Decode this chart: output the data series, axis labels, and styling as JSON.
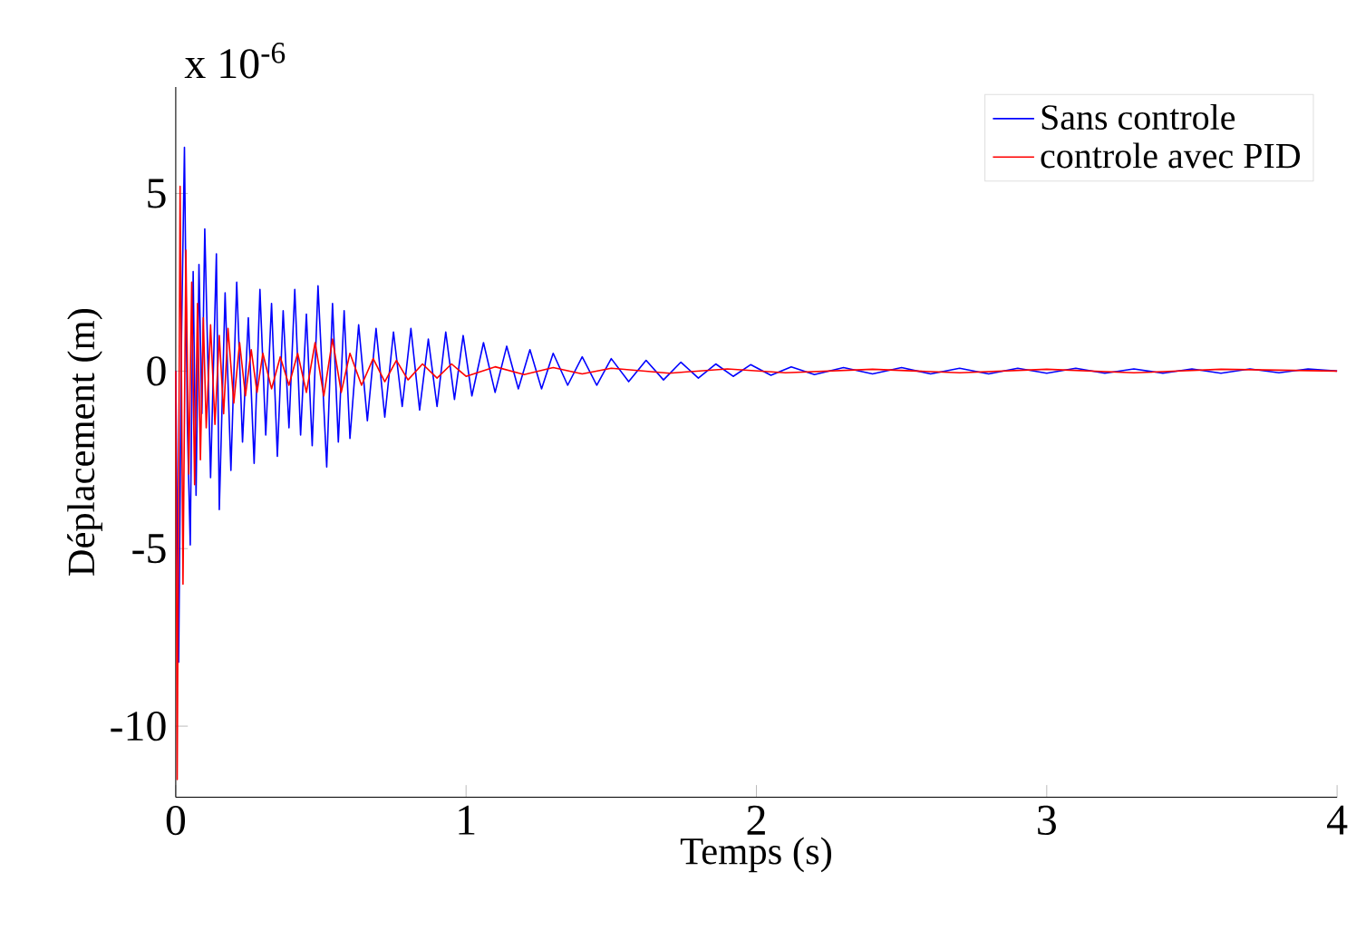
{
  "chart_data": {
    "type": "line",
    "xlabel": "Temps (s)",
    "ylabel": "Déplacement (m)",
    "annotations": [
      "x 10$^{-6}$"
    ],
    "xlim": [
      0,
      4
    ],
    "ylim": [
      -12,
      8
    ],
    "xticks": [
      0,
      1,
      2,
      3,
      4
    ],
    "yticks": [
      -10,
      -5,
      0,
      5
    ],
    "legend": "top right",
    "grid": false,
    "marker": "none",
    "line_style": "solid",
    "series": [
      {
        "name": "Sans controle",
        "color": "#0000ff",
        "x": [
          0,
          0.01,
          0.02,
          0.03,
          0.04,
          0.05,
          0.06,
          0.07,
          0.08,
          0.09,
          0.1,
          0.12,
          0.14,
          0.15,
          0.17,
          0.19,
          0.21,
          0.23,
          0.25,
          0.27,
          0.29,
          0.31,
          0.33,
          0.35,
          0.37,
          0.39,
          0.41,
          0.43,
          0.45,
          0.47,
          0.49,
          0.52,
          0.54,
          0.56,
          0.58,
          0.6,
          0.63,
          0.66,
          0.69,
          0.72,
          0.75,
          0.78,
          0.81,
          0.84,
          0.87,
          0.9,
          0.93,
          0.96,
          0.99,
          1.02,
          1.06,
          1.1,
          1.14,
          1.18,
          1.22,
          1.26,
          1.3,
          1.35,
          1.4,
          1.45,
          1.5,
          1.56,
          1.62,
          1.68,
          1.74,
          1.8,
          1.86,
          1.92,
          1.98,
          2.05,
          2.12,
          2.2,
          2.3,
          2.4,
          2.5,
          2.6,
          2.7,
          2.8,
          2.9,
          3.0,
          3.1,
          3.2,
          3.3,
          3.4,
          3.5,
          3.6,
          3.7,
          3.8,
          3.9,
          4.0
        ],
        "values": [
          0,
          -8.2,
          1,
          6.3,
          -1.5,
          -4.9,
          2.8,
          -3.5,
          3.0,
          -1.2,
          4.0,
          -3.0,
          3.3,
          -3.9,
          2.2,
          -2.8,
          2.5,
          -2.0,
          1.5,
          -2.6,
          2.3,
          -1.8,
          1.9,
          -2.4,
          1.7,
          -1.6,
          2.3,
          -1.8,
          1.6,
          -2.1,
          2.4,
          -2.7,
          1.9,
          -2.0,
          1.7,
          -1.9,
          1.3,
          -1.4,
          1.2,
          -1.3,
          1.1,
          -1.0,
          1.2,
          -1.1,
          0.9,
          -1.0,
          1.1,
          -0.8,
          1.0,
          -0.7,
          0.8,
          -0.6,
          0.7,
          -0.5,
          0.6,
          -0.5,
          0.5,
          -0.4,
          0.4,
          -0.4,
          0.35,
          -0.3,
          0.3,
          -0.25,
          0.25,
          -0.2,
          0.2,
          -0.15,
          0.18,
          -0.12,
          0.12,
          -0.1,
          0.1,
          -0.08,
          0.1,
          -0.08,
          0.08,
          -0.08,
          0.08,
          -0.06,
          0.08,
          -0.06,
          0.06,
          -0.06,
          0.06,
          -0.06,
          0.06,
          -0.05,
          0.06,
          0
        ]
      },
      {
        "name": "controle avec PID",
        "color": "#ff0000",
        "x": [
          0,
          0.005,
          0.015,
          0.025,
          0.035,
          0.045,
          0.055,
          0.065,
          0.075,
          0.085,
          0.095,
          0.105,
          0.12,
          0.135,
          0.15,
          0.165,
          0.18,
          0.2,
          0.22,
          0.24,
          0.26,
          0.28,
          0.3,
          0.33,
          0.36,
          0.39,
          0.42,
          0.45,
          0.48,
          0.51,
          0.54,
          0.57,
          0.6,
          0.64,
          0.68,
          0.72,
          0.76,
          0.8,
          0.85,
          0.9,
          0.95,
          1.0,
          1.1,
          1.2,
          1.3,
          1.4,
          1.5,
          1.7,
          1.9,
          2.1,
          2.4,
          2.7,
          3.0,
          3.3,
          3.6,
          4.0
        ],
        "values": [
          0,
          -11.5,
          5.2,
          -6.0,
          3.4,
          -2.9,
          2.5,
          -3.2,
          1.9,
          -2.5,
          1.5,
          -1.6,
          1.3,
          -1.5,
          1.0,
          -1.2,
          1.2,
          -0.9,
          0.8,
          -0.7,
          0.6,
          -0.6,
          0.5,
          -0.5,
          0.4,
          -0.4,
          0.5,
          -0.6,
          0.8,
          -0.7,
          0.9,
          -0.6,
          0.5,
          -0.4,
          0.35,
          -0.3,
          0.3,
          -0.25,
          0.2,
          -0.2,
          0.2,
          -0.15,
          0.12,
          -0.1,
          0.1,
          -0.08,
          0.08,
          -0.06,
          0.06,
          -0.05,
          0.05,
          -0.05,
          0.05,
          -0.05,
          0.05,
          0
        ]
      }
    ]
  }
}
